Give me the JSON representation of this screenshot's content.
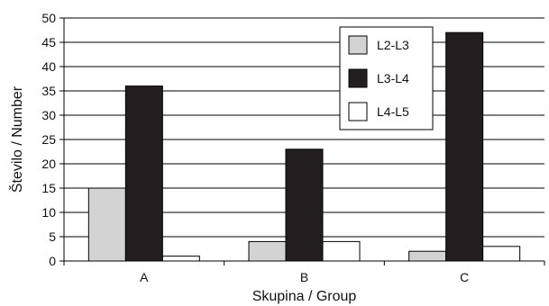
{
  "chart_data": {
    "type": "bar",
    "title": "",
    "xlabel": "Skupina / Group",
    "ylabel": "Število / Number",
    "categories": [
      "A",
      "B",
      "C"
    ],
    "ylim": [
      0,
      50
    ],
    "yticks": [
      0,
      5,
      10,
      15,
      20,
      25,
      30,
      35,
      40,
      45,
      50
    ],
    "grid": true,
    "legend_position": "top-right",
    "series": [
      {
        "name": "L2-L3",
        "color": "#d3d3d3",
        "values": [
          15,
          4,
          2
        ]
      },
      {
        "name": "L3-L4",
        "color": "#231f20",
        "values": [
          36,
          23,
          47
        ]
      },
      {
        "name": "L4-L5",
        "color": "#ffffff",
        "values": [
          1,
          4,
          3
        ]
      }
    ]
  }
}
